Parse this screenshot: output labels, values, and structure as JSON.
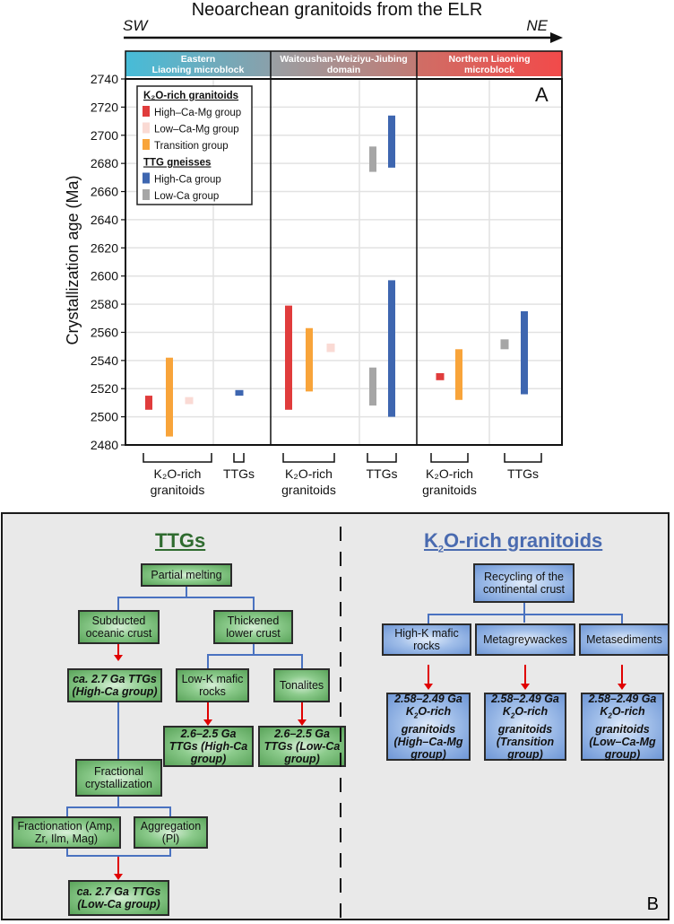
{
  "chart_data": {
    "type": "bar",
    "subtype": "floating-range",
    "title": "Neoarchean granitoids from the ELR",
    "direction": {
      "left": "SW",
      "right": "NE"
    },
    "panel_label": "A",
    "ylabel": "Crystallization age (Ma)",
    "ylim": [
      2480,
      2740
    ],
    "yticks": [
      2480,
      2500,
      2520,
      2540,
      2560,
      2580,
      2600,
      2620,
      2640,
      2660,
      2680,
      2700,
      2720,
      2740
    ],
    "grid": true,
    "domains": [
      {
        "name": "Eastern Liaoning microblock",
        "color_start": "#46bcd8",
        "color_end": "#8aa0aa"
      },
      {
        "name": "Waitoushan-Weiziyu-Jiubing domain",
        "color_start": "#9aa0a4",
        "color_end": "#c07a74"
      },
      {
        "name": "Northern Liaoning microblock",
        "color_start": "#cf6e66",
        "color_end": "#f24a4a"
      }
    ],
    "groups_per_domain": [
      "K₂O-rich granitoids",
      "TTGs"
    ],
    "legend": {
      "placement": "top-left",
      "sections": [
        {
          "title": "K₂O-rich granitoids",
          "items": [
            {
              "name": "High–Ca-Mg group",
              "color": "#e03c3c"
            },
            {
              "name": "Low–Ca-Mg group",
              "color": "#fadad4"
            },
            {
              "name": "Transition group",
              "color": "#f8a43a"
            }
          ]
        },
        {
          "title": "TTG gneisses",
          "items": [
            {
              "name": "High-Ca group",
              "color": "#3e66b0"
            },
            {
              "name": "Low-Ca group",
              "color": "#a6a6a6"
            }
          ]
        }
      ]
    },
    "series": [
      {
        "domain": 0,
        "group": "K₂O-rich granitoids",
        "name": "High–Ca-Mg group",
        "range": [
          2505,
          2515
        ]
      },
      {
        "domain": 0,
        "group": "K₂O-rich granitoids",
        "name": "Transition group",
        "range": [
          2486,
          2542
        ]
      },
      {
        "domain": 0,
        "group": "K₂O-rich granitoids",
        "name": "Low–Ca-Mg group",
        "range": [
          2509,
          2514
        ]
      },
      {
        "domain": 0,
        "group": "TTGs",
        "name": "High-Ca group",
        "range": [
          2515,
          2519
        ]
      },
      {
        "domain": 1,
        "group": "K₂O-rich granitoids",
        "name": "High–Ca-Mg group",
        "range": [
          2505,
          2579
        ]
      },
      {
        "domain": 1,
        "group": "K₂O-rich granitoids",
        "name": "Transition group",
        "range": [
          2518,
          2563
        ]
      },
      {
        "domain": 1,
        "group": "K₂O-rich granitoids",
        "name": "Low–Ca-Mg group",
        "range": [
          2546,
          2552
        ]
      },
      {
        "domain": 1,
        "group": "TTGs",
        "name": "Low-Ca group",
        "range": [
          2508,
          2535
        ]
      },
      {
        "domain": 1,
        "group": "TTGs",
        "name": "High-Ca group",
        "range": [
          2500,
          2597
        ]
      },
      {
        "domain": 1,
        "group": "TTGs",
        "name": "Low-Ca group",
        "range": [
          2674,
          2692
        ]
      },
      {
        "domain": 1,
        "group": "TTGs",
        "name": "High-Ca group",
        "range": [
          2677,
          2714
        ]
      },
      {
        "domain": 2,
        "group": "K₂O-rich granitoids",
        "name": "High–Ca-Mg group",
        "range": [
          2526,
          2531
        ]
      },
      {
        "domain": 2,
        "group": "K₂O-rich granitoids",
        "name": "Transition group",
        "range": [
          2512,
          2548
        ]
      },
      {
        "domain": 2,
        "group": "TTGs",
        "name": "Low-Ca group",
        "range": [
          2548,
          2555
        ]
      },
      {
        "domain": 2,
        "group": "TTGs",
        "name": "High-Ca group",
        "range": [
          2516,
          2575
        ]
      }
    ]
  },
  "panelB": {
    "label": "B",
    "ttg": {
      "title": "TTGs",
      "partial_melting": "Partial melting",
      "subducted": "Subducted oceanic crust",
      "thickened": "Thickened lower crust",
      "ca27_high": "ca. 2.7 Ga TTGs (High-Ca group)",
      "lowk_mafic": "Low-K mafic rocks",
      "tonalites": "Tonalites",
      "ttg_high": "2.6–2.5 Ga TTGs (High-Ca group)",
      "ttg_low": "2.6–2.5 Ga TTGs (Low-Ca group)",
      "fractional": "Fractional crystallization",
      "fractionation": "Fractionation (Amp, Zr, Ilm, Mag)",
      "aggregation": "Aggregation (Pl)",
      "ca27_low": "ca. 2.7 Ga TTGs (Low-Ca group)"
    },
    "k2o": {
      "title_pre": "K",
      "title_sub": "2",
      "title_post": "O-rich granitoids",
      "recycling": "Recycling of the continental crust",
      "highk": "High-K mafic rocks",
      "metagreywackes": "Metagreywackes",
      "metasediments": "Metasediments",
      "out_prefix": "2.58–2.49 Ga",
      "out_k": "K",
      "out_sub": "2",
      "out_mid": "O-rich granitoids",
      "out1": "(High–Ca-Mg group)",
      "out2": "(Transition group)",
      "out3": "(Low–Ca-Mg group)"
    }
  }
}
